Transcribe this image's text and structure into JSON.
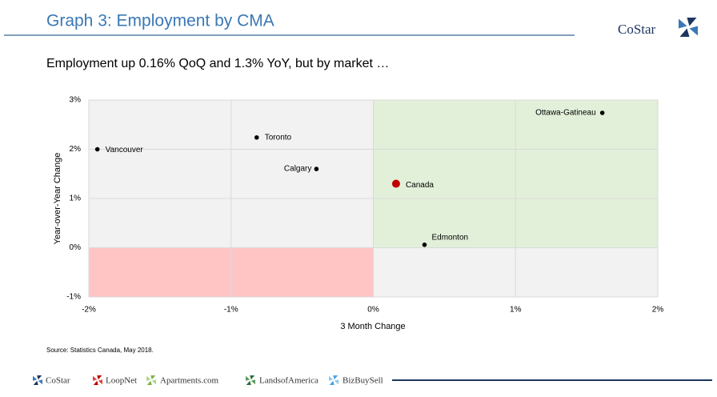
{
  "header": {
    "title": "Graph 3: Employment by CMA",
    "logo": "CoStar"
  },
  "subtitle": "Employment up 0.16% QoQ and 1.3% YoY, but by market …",
  "chart_data": {
    "type": "scatter",
    "x_label": "3 Month Change",
    "y_label": "Year-over-Year Change",
    "labels": [
      "Vancouver",
      "Toronto",
      "Calgary",
      "Canada",
      "Edmonton",
      "Ottawa-Gatineau"
    ],
    "x": [
      -1.94,
      -0.82,
      -0.4,
      0.16,
      0.36,
      1.61
    ],
    "values": [
      2.0,
      2.24,
      1.6,
      1.3,
      0.06,
      2.74
    ],
    "colors": [
      "#000000",
      "#000000",
      "#000000",
      "#c00000",
      "#000000",
      "#000000"
    ],
    "xlim": [
      -2,
      2
    ],
    "xticks": [
      {
        "value": -2,
        "label": "-2%"
      },
      {
        "value": -1,
        "label": "-1%"
      },
      {
        "value": 0,
        "label": "0%"
      },
      {
        "value": 1,
        "label": "1%"
      },
      {
        "value": 2,
        "label": "2%"
      }
    ],
    "ylim": [
      -1,
      3
    ],
    "yticks": [
      {
        "value": -1,
        "label": "-1%"
      },
      {
        "value": 0,
        "label": "0%"
      },
      {
        "value": 1,
        "label": "1%"
      },
      {
        "value": 2,
        "label": "2%"
      },
      {
        "value": 3,
        "label": "3%"
      }
    ],
    "grid": true
  },
  "source": "Source: Statistics Canada, May 2018.",
  "footer": {
    "brands": [
      "CoStar",
      "LoopNet",
      "Apartments.com",
      "LandsofAmerica",
      "BizBuySell"
    ]
  }
}
